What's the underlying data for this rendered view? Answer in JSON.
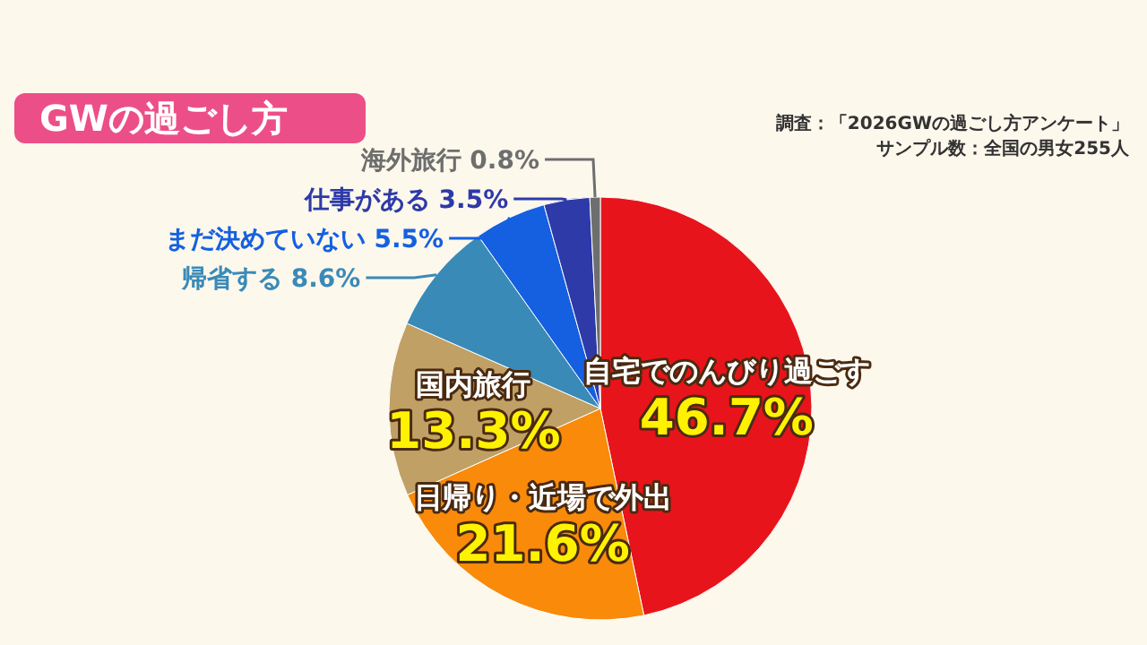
{
  "chart_data": {
    "type": "pie",
    "title": "GWの過ごし方",
    "categories": [
      "自宅でのんびり過ごす",
      "日帰り・近場で外出",
      "国内旅行",
      "帰省する",
      "まだ決めていない",
      "仕事がある",
      "海外旅行"
    ],
    "values": [
      46.7,
      21.6,
      13.3,
      8.6,
      5.5,
      3.5,
      0.8
    ],
    "colors": [
      "#e8141b",
      "#f98a0a",
      "#c0a064",
      "#3a8ab8",
      "#1560e0",
      "#2d3aa8",
      "#6e6e6e"
    ],
    "value_labels": [
      "46.7%",
      "21.6%",
      "13.3%",
      "8.6%",
      "5.5%",
      "3.5%",
      "0.8%"
    ],
    "annotations": [
      "調査：「2026GWの過ごし方アンケート」",
      "サンプル数：全国の男女255人"
    ]
  }
}
